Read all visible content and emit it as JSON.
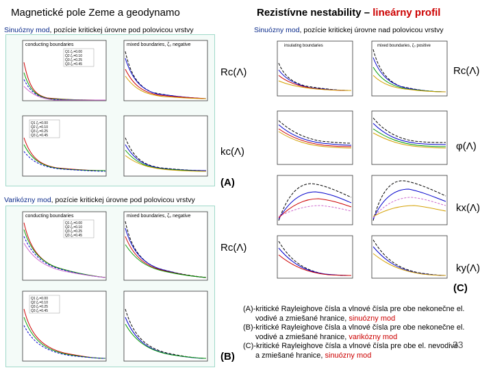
{
  "header": {
    "left_title": "Magnetické pole Zeme a geodynamo",
    "right_title_part1": "Rezistívne nestability – ",
    "right_title_part2": "lineárny profil"
  },
  "left_top": {
    "subtitle_mode": "Sinuózny mod",
    "subtitle_rest": ", pozície kritickej úrovne pod polovicou vrstvy",
    "plot1_title": "conducting boundaries",
    "plot2_title": "mixed boundaries, ζ₀ negative",
    "legend": [
      "Q1 ζ₀=0.00",
      "Q2 ζ₀=0.10",
      "Q3 ζ₀=0.25",
      "Q3 ζ₀=0.45"
    ],
    "label_rc": "Rc(Λ)",
    "label_kc": "kc(Λ)",
    "tag": "(A)"
  },
  "left_bottom": {
    "subtitle_mode": "Varikózny mod",
    "subtitle_rest": ", pozície kritickej úrovne pod polovicou vrstvy",
    "plot1_title": "conducting boundaries",
    "plot2_title": "mixed boundaries, ζ₀ negative",
    "legend": [
      "Q1 ζ₀=0.00",
      "Q2 ζ₀=0.10",
      "Q3 ζ₀=0.25",
      "Q3 ζ₀=0.45"
    ],
    "label_rc": "Rc(Λ)",
    "tag": "(B)"
  },
  "right": {
    "subtitle_mode": "Sinuózny mod",
    "subtitle_rest": ", pozície kritickej úrovne nad polovicou vrstvy",
    "plot1_title": "insulating boundaries",
    "plot2_title": "mixed boundaries, ζ₀ positive",
    "label_rc": "Rc(Λ)",
    "label_phi": "φ(Λ)",
    "label_kx": "kx(Λ)",
    "label_ky": "ky(Λ)",
    "tag": "(C)"
  },
  "caption": {
    "a_prefix": "(A)",
    "a_text1": "-kritické Rayleighove čísla a vlnové čísla pre obe nekonečne el.",
    "a_text2": "vodivé a zmiešané hranice, ",
    "a_mode": "sinuózny mod",
    "b_prefix": "(B)",
    "b_text1": "-kritické Rayleighove čísla a vlnové čísla pre obe nekonečne el.",
    "b_text2": "vodivé a zmiešané hranice, ",
    "b_mode": "varikózny mod",
    "c_prefix": "(C)",
    "c_text1": "-kritické Rayleighove čísla a vlnové čísla pre obe el. nevodivé",
    "c_text2": "a zmiešané hranice, ",
    "c_mode": "sinuózny mod"
  },
  "page_number": "33",
  "colors": {
    "title_red": "#cc0000",
    "subtitle_blue": "#0a2a8a",
    "series": [
      "#cc0000",
      "#009900",
      "#0000cc",
      "#cc66cc",
      "#d4a000",
      "#000000"
    ]
  }
}
